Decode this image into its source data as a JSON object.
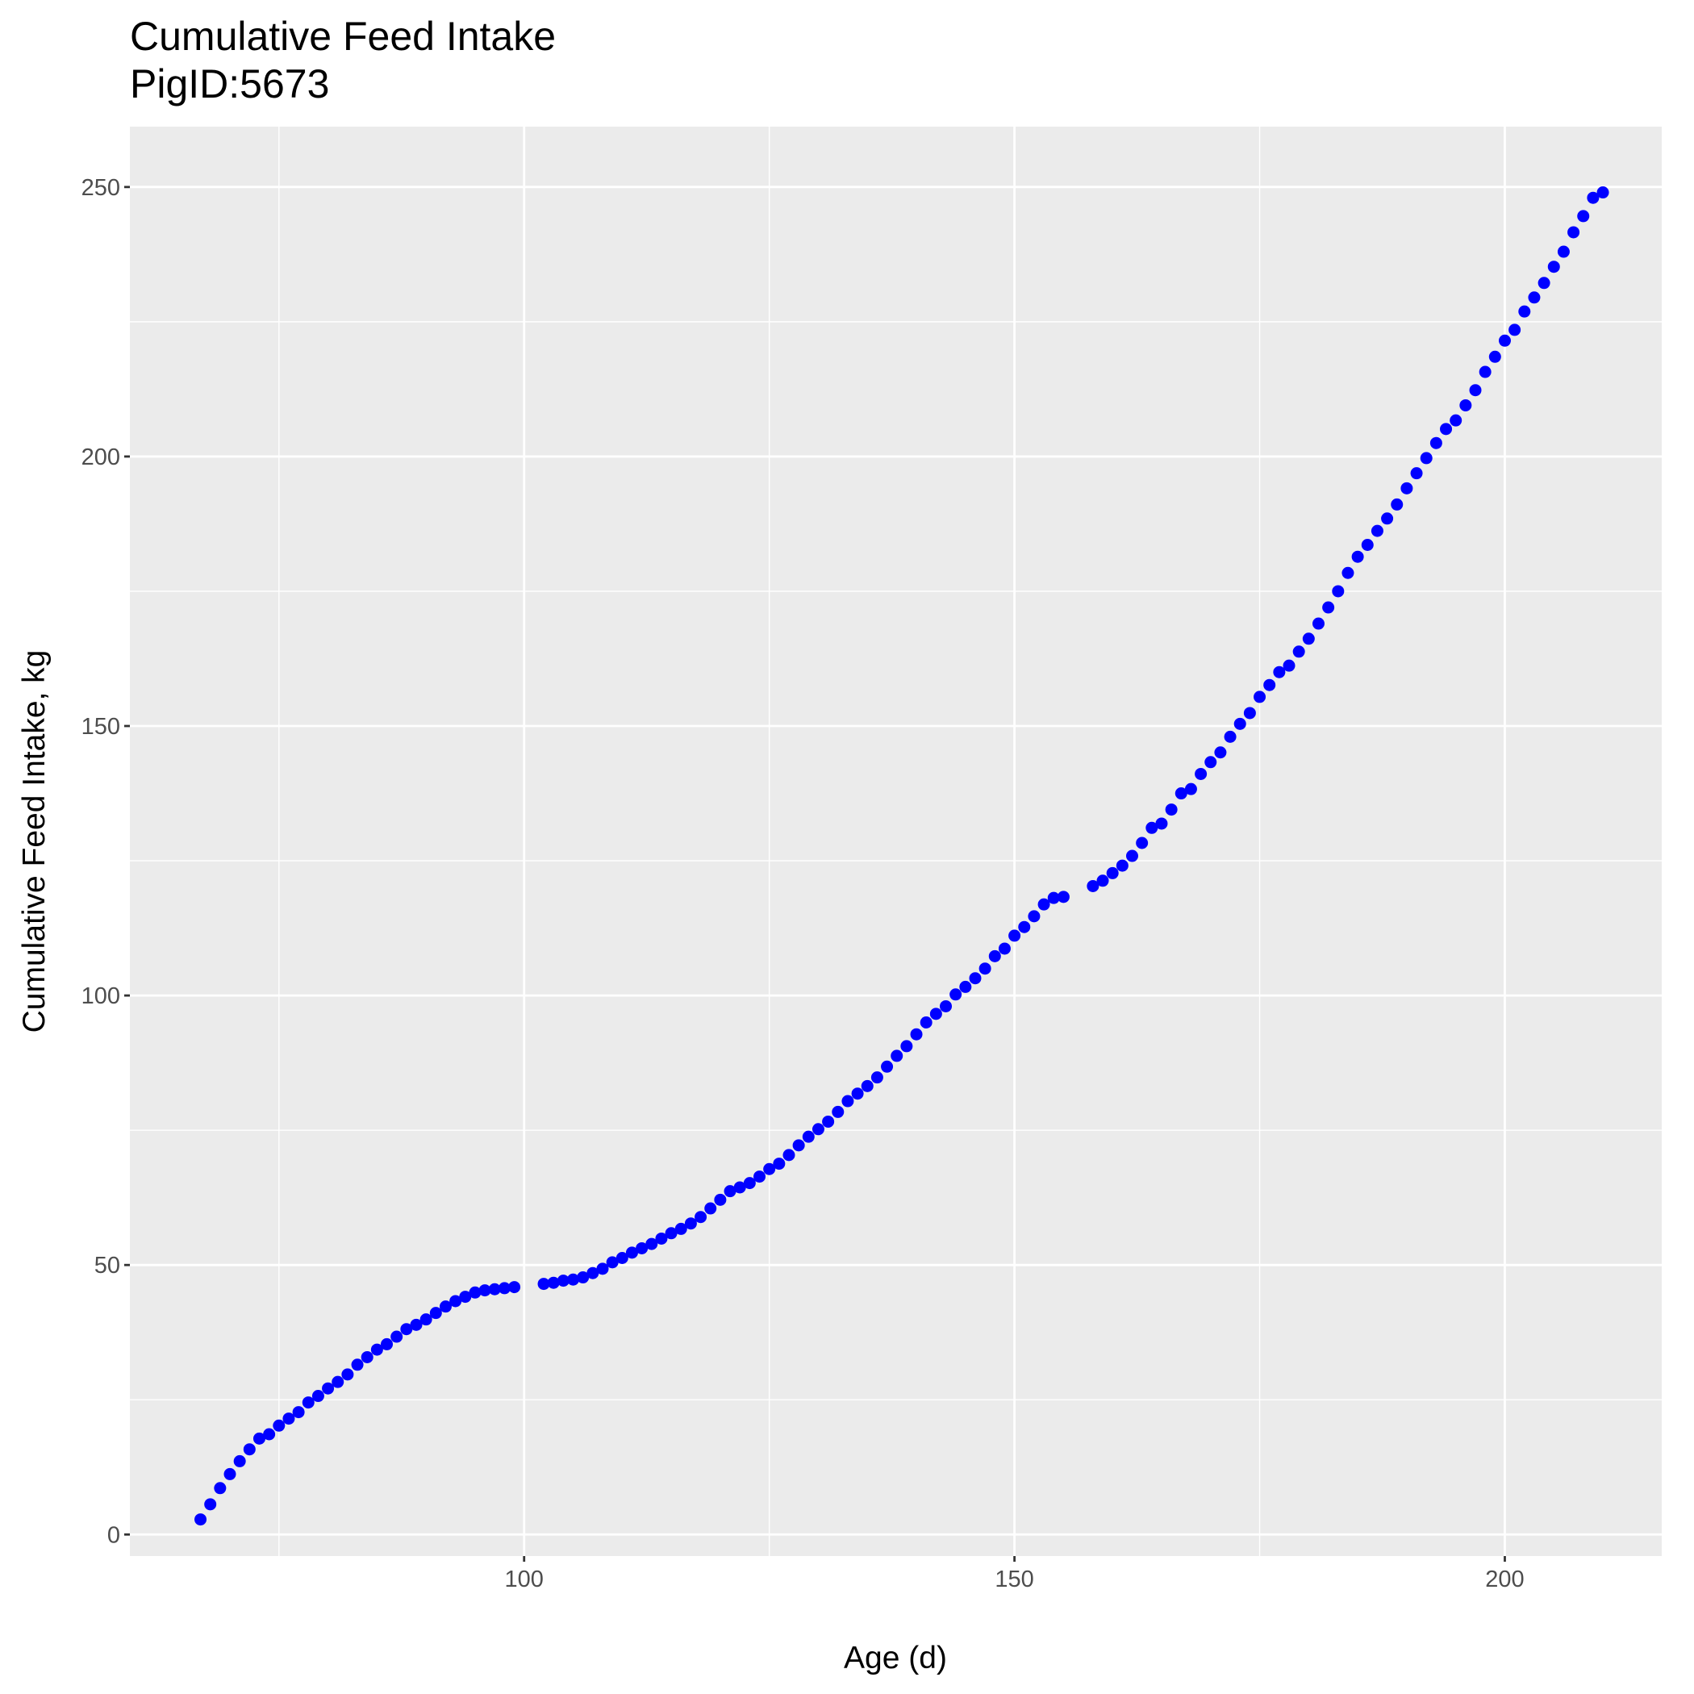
{
  "chart_data": {
    "type": "scatter",
    "title": "Cumulative Feed Intake",
    "subtitle": "PigID:5673",
    "x_label": "Age (d)",
    "y_label": "Cumulative Feed Intake, kg",
    "color": "#0000ff",
    "grid": true,
    "xlim": [
      59.8,
      216.0
    ],
    "ylim": [
      -4.0,
      261.2
    ],
    "xticks": [
      100,
      150,
      200
    ],
    "yticks": [
      0,
      50,
      100,
      150,
      200,
      250
    ],
    "xminor": [
      75,
      125,
      175
    ],
    "yminor": [
      25,
      75,
      125,
      175,
      225
    ],
    "x": [
      67,
      68,
      69,
      70,
      71,
      72,
      73,
      74,
      75,
      76,
      77,
      78,
      79,
      80,
      81,
      82,
      83,
      84,
      85,
      86,
      87,
      88,
      89,
      90,
      91,
      92,
      93,
      94,
      95,
      96,
      97,
      98,
      99,
      102,
      103,
      104,
      105,
      106,
      107,
      108,
      109,
      110,
      111,
      112,
      113,
      114,
      115,
      116,
      117,
      118,
      119,
      120,
      121,
      122,
      123,
      124,
      125,
      126,
      127,
      128,
      129,
      130,
      131,
      132,
      133,
      134,
      135,
      136,
      137,
      138,
      139,
      140,
      141,
      142,
      143,
      144,
      145,
      146,
      147,
      148,
      149,
      150,
      151,
      152,
      153,
      154,
      155,
      158,
      159,
      160,
      161,
      162,
      163,
      164,
      165,
      166,
      167,
      168,
      169,
      170,
      171,
      172,
      173,
      174,
      175,
      176,
      177,
      178,
      179,
      180,
      181,
      182,
      183,
      184,
      185,
      186,
      187,
      188,
      189,
      190,
      191,
      192,
      193,
      194,
      195,
      196,
      197,
      198,
      199,
      200,
      201,
      202,
      203,
      204,
      205,
      206,
      207,
      208,
      209,
      210
    ],
    "values": [
      2.8,
      5.6,
      8.6,
      11.2,
      13.6,
      15.8,
      17.8,
      18.6,
      20.2,
      21.5,
      22.7,
      24.5,
      25.7,
      27.1,
      28.3,
      29.7,
      31.5,
      32.9,
      34.3,
      35.3,
      36.7,
      38.1,
      38.9,
      39.9,
      41.1,
      42.3,
      43.3,
      44.1,
      44.9,
      45.3,
      45.5,
      45.7,
      45.9,
      46.5,
      46.7,
      47.1,
      47.3,
      47.7,
      48.5,
      49.3,
      50.5,
      51.3,
      52.3,
      53.1,
      53.9,
      54.9,
      55.9,
      56.7,
      57.7,
      58.9,
      60.5,
      62.1,
      63.7,
      64.4,
      65.2,
      66.4,
      67.8,
      68.8,
      70.4,
      72.2,
      73.8,
      75.2,
      76.6,
      78.4,
      80.4,
      81.8,
      83.2,
      84.8,
      86.8,
      88.8,
      90.6,
      92.8,
      95.0,
      96.6,
      98.0,
      100.2,
      101.6,
      103.2,
      105.0,
      107.3,
      108.7,
      111.1,
      112.7,
      114.7,
      116.9,
      118.1,
      118.3,
      120.3,
      121.3,
      122.7,
      124.1,
      125.9,
      128.3,
      131.1,
      131.9,
      134.5,
      137.5,
      138.3,
      141.1,
      143.3,
      145.1,
      148.0,
      150.4,
      152.4,
      155.4,
      157.6,
      160.0,
      161.2,
      163.8,
      166.2,
      169.0,
      172.0,
      175.0,
      178.4,
      181.4,
      183.6,
      186.2,
      188.5,
      191.1,
      194.1,
      196.9,
      199.7,
      202.5,
      205.1,
      206.7,
      209.5,
      212.3,
      215.7,
      218.5,
      221.5,
      223.5,
      226.9,
      229.5,
      232.2,
      235.2,
      238.0,
      241.6,
      244.6,
      248.0,
      249.0
    ]
  }
}
